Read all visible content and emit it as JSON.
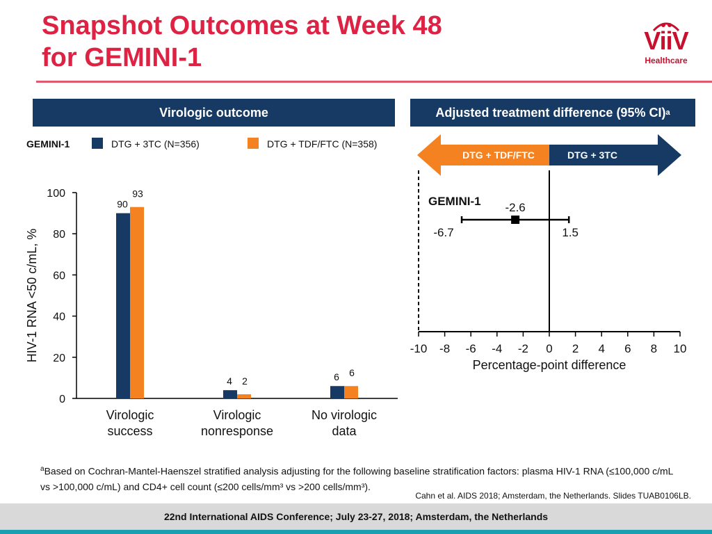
{
  "title_line1": "Snapshot Outcomes at Week 48",
  "title_line2": "for GEMINI-1",
  "logo": {
    "word": "ViiV",
    "sub": "Healthcare"
  },
  "colors": {
    "title": "#dd2244",
    "navy": "#163a63",
    "orange": "#f58220",
    "footer_accent": "#1aa0b0"
  },
  "left_panel": {
    "header": "Virologic outcome",
    "study_label": "GEMINI-1",
    "legend": [
      {
        "label": "DTG + 3TC (N=356)",
        "color": "#163a63"
      },
      {
        "label": "DTG + TDF/FTC (N=358)",
        "color": "#f58220"
      }
    ]
  },
  "right_panel": {
    "header": "Adjusted treatment difference (95% CI)",
    "header_sup": "a",
    "arrow_left": "DTG + TDF/FTC",
    "arrow_right": "DTG + 3TC"
  },
  "chart_data": [
    {
      "type": "bar",
      "categories": [
        "Virologic success",
        "Virologic nonresponse",
        "No virologic data"
      ],
      "category_lines": [
        [
          "Virologic",
          "success"
        ],
        [
          "Virologic",
          "nonresponse"
        ],
        [
          "No virologic",
          "data"
        ]
      ],
      "series": [
        {
          "name": "DTG + 3TC (N=356)",
          "values": [
            90,
            4,
            6
          ],
          "color": "#163a63"
        },
        {
          "name": "DTG + TDF/FTC (N=358)",
          "values": [
            93,
            2,
            6
          ],
          "color": "#f58220"
        }
      ],
      "ylabel": "HIV-1 RNA <50 c/mL, %",
      "ylim": [
        0,
        100
      ],
      "yticks": [
        0,
        20,
        40,
        60,
        80,
        100
      ]
    },
    {
      "type": "scatter",
      "subtype": "forest",
      "label": "GEMINI-1",
      "estimate": -2.6,
      "ci_low": -6.7,
      "ci_high": 1.5,
      "estimate_label": "-2.6",
      "ci_low_label": "-6.7",
      "ci_high_label": "1.5",
      "xlabel": "Percentage-point difference",
      "xlim": [
        -10,
        10
      ],
      "xticks": [
        -10,
        -8,
        -6,
        -4,
        -2,
        0,
        2,
        4,
        6,
        8,
        10
      ]
    }
  ],
  "footnote": {
    "sup": "a",
    "text": "Based on Cochran-Mantel-Haenszel stratified analysis adjusting for the following baseline stratification factors: plasma HIV-1 RNA (≤100,000 c/mL vs >100,000 c/mL) and CD4+ cell count (≤200 cells/mm³ vs >200 cells/mm³)."
  },
  "source": "Cahn et al. AIDS 2018; Amsterdam, the Netherlands. Slides TUAB0106LB.",
  "footer": "22nd International AIDS Conference; July 23-27, 2018; Amsterdam, the Netherlands"
}
